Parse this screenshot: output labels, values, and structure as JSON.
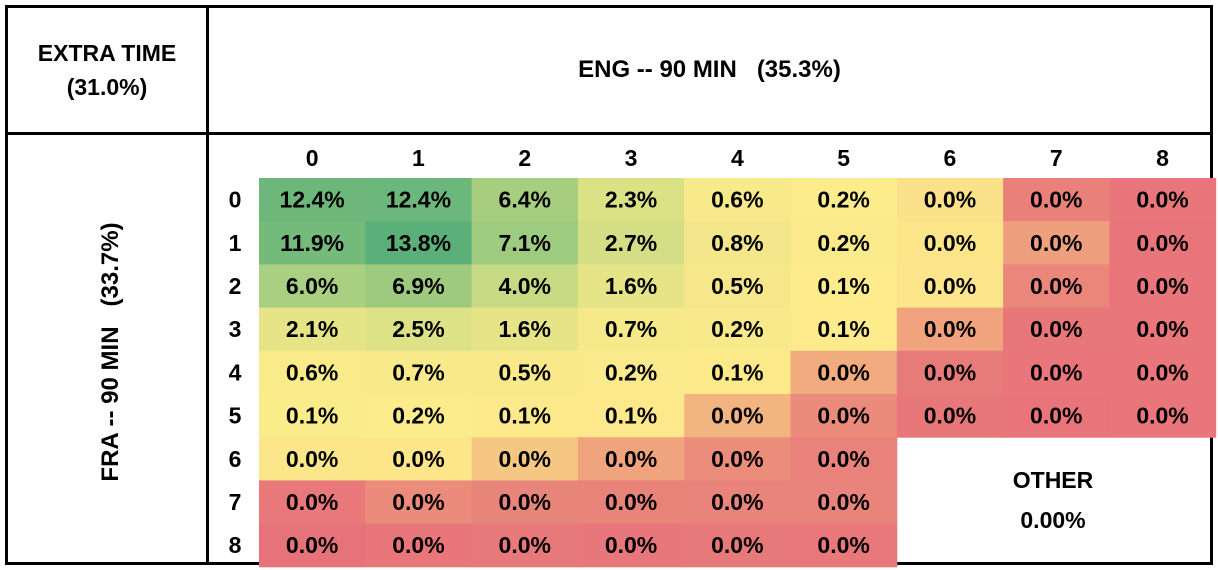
{
  "corner": {
    "line1": "EXTRA TIME",
    "line2": "(31.0%)"
  },
  "column_header": "ENG -- 90 MIN   (35.3%)",
  "row_header": "FRA -- 90 MIN   (33.7%)",
  "other": {
    "label": "OTHER",
    "value": "0.00%"
  },
  "chart_data": {
    "type": "heatmap",
    "x_axis_label": "ENG -- 90 MIN   (35.3%)",
    "y_axis_label": "FRA -- 90 MIN   (33.7%)",
    "x_categories": [
      "0",
      "1",
      "2",
      "3",
      "4",
      "5",
      "6",
      "7",
      "8"
    ],
    "y_categories": [
      "0",
      "1",
      "2",
      "3",
      "4",
      "5",
      "6",
      "7",
      "8"
    ],
    "values": [
      [
        12.4,
        12.4,
        6.4,
        2.3,
        0.6,
        0.2,
        0.0,
        0.0,
        0.0
      ],
      [
        11.9,
        13.8,
        7.1,
        2.7,
        0.8,
        0.2,
        0.0,
        0.0,
        0.0
      ],
      [
        6.0,
        6.9,
        4.0,
        1.6,
        0.5,
        0.1,
        0.0,
        0.0,
        0.0
      ],
      [
        2.1,
        2.5,
        1.6,
        0.7,
        0.2,
        0.1,
        0.0,
        0.0,
        0.0
      ],
      [
        0.6,
        0.7,
        0.5,
        0.2,
        0.1,
        0.0,
        0.0,
        0.0,
        0.0
      ],
      [
        0.1,
        0.2,
        0.1,
        0.1,
        0.0,
        0.0,
        0.0,
        0.0,
        0.0
      ],
      [
        0.0,
        0.0,
        0.0,
        0.0,
        0.0,
        0.0,
        null,
        null,
        null
      ],
      [
        0.0,
        0.0,
        0.0,
        0.0,
        0.0,
        0.0,
        null,
        null,
        null
      ],
      [
        0.0,
        0.0,
        0.0,
        0.0,
        0.0,
        0.0,
        null,
        null,
        null
      ]
    ],
    "labels": [
      [
        "12.4%",
        "12.4%",
        "6.4%",
        "2.3%",
        "0.6%",
        "0.2%",
        "0.0%",
        "0.0%",
        "0.0%"
      ],
      [
        "11.9%",
        "13.8%",
        "7.1%",
        "2.7%",
        "0.8%",
        "0.2%",
        "0.0%",
        "0.0%",
        "0.0%"
      ],
      [
        "6.0%",
        "6.9%",
        "4.0%",
        "1.6%",
        "0.5%",
        "0.1%",
        "0.0%",
        "0.0%",
        "0.0%"
      ],
      [
        "2.1%",
        "2.5%",
        "1.6%",
        "0.7%",
        "0.2%",
        "0.1%",
        "0.0%",
        "0.0%",
        "0.0%"
      ],
      [
        "0.6%",
        "0.7%",
        "0.5%",
        "0.2%",
        "0.1%",
        "0.0%",
        "0.0%",
        "0.0%",
        "0.0%"
      ],
      [
        "0.1%",
        "0.2%",
        "0.1%",
        "0.1%",
        "0.0%",
        "0.0%",
        "0.0%",
        "0.0%",
        "0.0%"
      ],
      [
        "0.0%",
        "0.0%",
        "0.0%",
        "0.0%",
        "0.0%",
        "0.0%",
        null,
        null,
        null
      ],
      [
        "0.0%",
        "0.0%",
        "0.0%",
        "0.0%",
        "0.0%",
        "0.0%",
        null,
        null,
        null
      ],
      [
        "0.0%",
        "0.0%",
        "0.0%",
        "0.0%",
        "0.0%",
        "0.0%",
        null,
        null,
        null
      ]
    ],
    "cell_colors": [
      [
        "#6db77b",
        "#6cb77b",
        "#a7cd7f",
        "#dbe185",
        "#f8e98b",
        "#fdec8c",
        "#fbe18a",
        "#e9807a",
        "#e8767a"
      ],
      [
        "#74ba7b",
        "#5ab078",
        "#9dcb80",
        "#d4de84",
        "#f4e78b",
        "#fbea8b",
        "#fce589",
        "#eea07e",
        "#e8757a"
      ],
      [
        "#a9cf80",
        "#9dca7e",
        "#c7d983",
        "#e5e487",
        "#f5e78a",
        "#fdeb8c",
        "#fde58b",
        "#ea867a",
        "#e9767a"
      ],
      [
        "#e5e486",
        "#dde286",
        "#e6e487",
        "#f5e98a",
        "#f8ea8b",
        "#fdeb8c",
        "#f0a37d",
        "#e8777a",
        "#e8767a"
      ],
      [
        "#f9ea8a",
        "#f8ea8b",
        "#f9e98a",
        "#fbea8b",
        "#fce98a",
        "#f1ab7f",
        "#e77b7a",
        "#e8767a",
        "#e8767a"
      ],
      [
        "#faeb8b",
        "#fcec8c",
        "#fbe98b",
        "#fde98b",
        "#f3b580",
        "#ea8b7b",
        "#e8777a",
        "#e9747a",
        "#e8767a"
      ],
      [
        "#fbe78a",
        "#fde58a",
        "#f5c783",
        "#f0a47d",
        "#ec8d7b",
        "#e8827a",
        null,
        null,
        null
      ],
      [
        "#e8787a",
        "#ea8b7b",
        "#e8857a",
        "#e8837a",
        "#e8847b",
        "#e8847b",
        null,
        null,
        null
      ],
      [
        "#e7737a",
        "#e8767a",
        "#e8797a",
        "#e7777a",
        "#e8797a",
        "#e8787a",
        null,
        null,
        null
      ]
    ]
  }
}
